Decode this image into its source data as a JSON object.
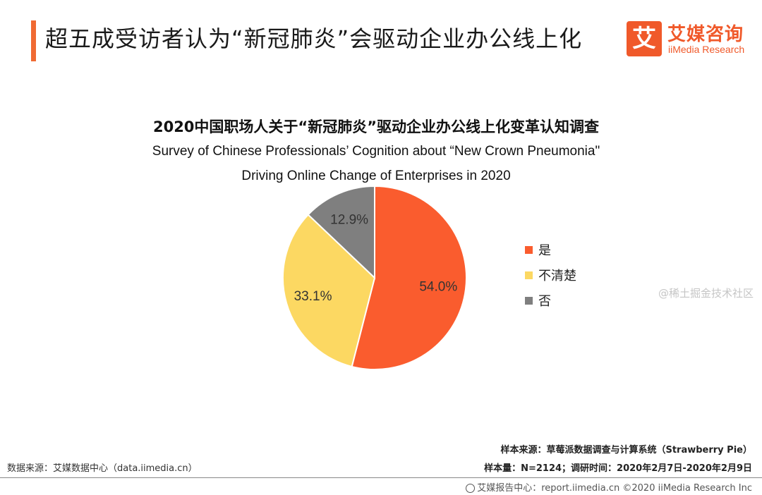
{
  "header": {
    "title": "超五成受访者认为“新冠肺炎”会驱动企业办公线上化"
  },
  "logo": {
    "mark": "艾",
    "cn": "艾媒咨询",
    "en": "iiMedia Research"
  },
  "colors": {
    "accent": "#f06a33",
    "yes": "#fa5c2e",
    "unclear": "#fcd862",
    "no": "#7f7f7f"
  },
  "chart_data": {
    "type": "pie",
    "title": "2020中国职场人关于“新冠肺炎”驱动企业办公线上化变革认知调查",
    "subtitle_line1": "Survey of Chinese  Professionals’  Cognition  about  “New Crown Pneumonia\"",
    "subtitle_line2": "Driving Online Change of Enterprises in 2020",
    "slices": [
      {
        "label": "是",
        "value": 54.0,
        "display": "54.0%",
        "color": "#fa5c2e"
      },
      {
        "label": "不清楚",
        "value": 33.1,
        "display": "33.1%",
        "color": "#fcd862"
      },
      {
        "label": "否",
        "value": 12.9,
        "display": "12.9%",
        "color": "#7f7f7f"
      }
    ],
    "legend_position": "right"
  },
  "footer": {
    "source": "数据来源：艾媒数据中心（data.iimedia.cn）",
    "sample_source": "样本来源：草莓派数据调查与计算系统（Strawberry   Pie）",
    "sample_info": "样本量：N=2124；调研时间：2020年2月7日-2020年2月9日",
    "report_center": "艾媒报告中心：report.iimedia.cn  ©2020  iiMedia Research Inc",
    "watermark": "@稀土掘金技术社区"
  }
}
